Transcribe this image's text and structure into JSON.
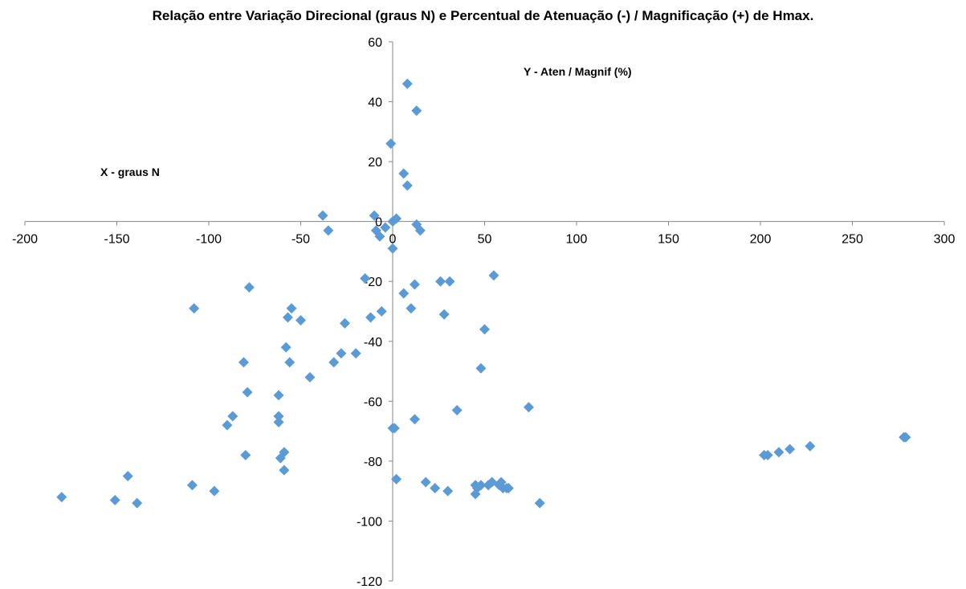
{
  "chart_data": {
    "type": "scatter",
    "title": "Relação entre Variação Direcional (graus N) e Percentual de Atenuação (-) / Magnificação (+) de Hmax.",
    "xlabel": "X - graus N",
    "ylabel": "Y - Aten / Magnif (%)",
    "xlim": [
      -200,
      300
    ],
    "ylim": [
      -120,
      60
    ],
    "x_ticks": [
      -200,
      -150,
      -100,
      -50,
      0,
      50,
      100,
      150,
      200,
      250,
      300
    ],
    "y_ticks": [
      60,
      40,
      20,
      0,
      -20,
      -40,
      -60,
      -80,
      -100,
      -120
    ],
    "grid": false,
    "legend": "none",
    "marker_color": "#5B9BD5",
    "marker": "diamond",
    "points": [
      [
        -180,
        -92
      ],
      [
        -151,
        -93
      ],
      [
        -144,
        -85
      ],
      [
        -139,
        -94
      ],
      [
        -109,
        -88
      ],
      [
        -108,
        -29
      ],
      [
        -97,
        -90
      ],
      [
        -90,
        -68
      ],
      [
        -87,
        -65
      ],
      [
        -81,
        -47
      ],
      [
        -80,
        -78
      ],
      [
        -79,
        -57
      ],
      [
        -78,
        -22
      ],
      [
        -62,
        -65
      ],
      [
        -62,
        -67
      ],
      [
        -62,
        -58
      ],
      [
        -61,
        -79
      ],
      [
        -59,
        -77
      ],
      [
        -59,
        -83
      ],
      [
        -58,
        -42
      ],
      [
        -57,
        -32
      ],
      [
        -56,
        -47
      ],
      [
        -55,
        -29
      ],
      [
        -50,
        -33
      ],
      [
        -45,
        -52
      ],
      [
        -38,
        2
      ],
      [
        -35,
        -3
      ],
      [
        -32,
        -47
      ],
      [
        -28,
        -44
      ],
      [
        -26,
        -34
      ],
      [
        -20,
        -44
      ],
      [
        -15,
        -19
      ],
      [
        -12,
        -32
      ],
      [
        -10,
        2
      ],
      [
        -9,
        -3
      ],
      [
        -7,
        -5
      ],
      [
        -6,
        -30
      ],
      [
        -4,
        -2
      ],
      [
        -1,
        26
      ],
      [
        0,
        0
      ],
      [
        0,
        -9
      ],
      [
        0,
        -69
      ],
      [
        1,
        -69
      ],
      [
        2,
        1
      ],
      [
        2,
        -86
      ],
      [
        6,
        -24
      ],
      [
        6,
        16
      ],
      [
        8,
        46
      ],
      [
        8,
        12
      ],
      [
        10,
        -29
      ],
      [
        12,
        -66
      ],
      [
        12,
        -21
      ],
      [
        13,
        -1
      ],
      [
        13,
        37
      ],
      [
        15,
        -3
      ],
      [
        18,
        -87
      ],
      [
        23,
        -89
      ],
      [
        26,
        -20
      ],
      [
        28,
        -31
      ],
      [
        30,
        -90
      ],
      [
        31,
        -20
      ],
      [
        35,
        -63
      ],
      [
        45,
        -88
      ],
      [
        45,
        -91
      ],
      [
        46,
        -89
      ],
      [
        48,
        -88
      ],
      [
        48,
        -49
      ],
      [
        50,
        -36
      ],
      [
        52,
        -88
      ],
      [
        54,
        -87
      ],
      [
        55,
        -18
      ],
      [
        58,
        -88
      ],
      [
        59,
        -87
      ],
      [
        60,
        -89
      ],
      [
        62,
        -89
      ],
      [
        63,
        -89
      ],
      [
        74,
        -62
      ],
      [
        80,
        -94
      ],
      [
        202,
        -78
      ],
      [
        204,
        -78
      ],
      [
        210,
        -77
      ],
      [
        216,
        -76
      ],
      [
        227,
        -75
      ],
      [
        278,
        -72
      ],
      [
        279,
        -72
      ]
    ]
  }
}
